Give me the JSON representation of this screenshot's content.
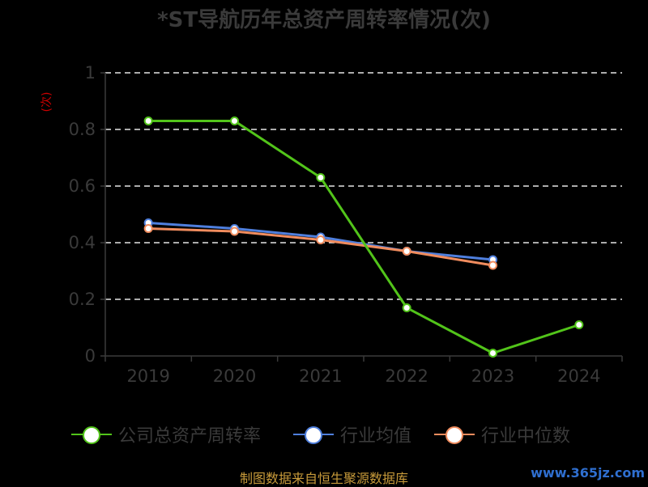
{
  "chart_data": {
    "type": "line",
    "title": "*ST导航历年总资产周转率情况(次)",
    "ylabel": "(次)",
    "xlabel": "",
    "categories": [
      "2019",
      "2020",
      "2021",
      "2022",
      "2023",
      "2024"
    ],
    "ylim": [
      0,
      1
    ],
    "yticks": [
      "0",
      "0.2",
      "0.4",
      "0.6",
      "0.8",
      "1"
    ],
    "grid": true,
    "legend_position": "bottom",
    "series": [
      {
        "name": "公司总资产周转率",
        "color": "#52c41a",
        "values": [
          0.83,
          0.83,
          0.63,
          0.17,
          0.01,
          0.11
        ]
      },
      {
        "name": "行业均值",
        "color": "#4f7fdd",
        "values": [
          0.47,
          0.45,
          0.42,
          0.37,
          0.34,
          null
        ]
      },
      {
        "name": "行业中位数",
        "color": "#f08c5e",
        "values": [
          0.45,
          0.44,
          0.41,
          0.37,
          0.32,
          null
        ]
      }
    ]
  },
  "footer": {
    "source": "制图数据来自恒生聚源数据库",
    "watermark": "www.365jz.com"
  }
}
